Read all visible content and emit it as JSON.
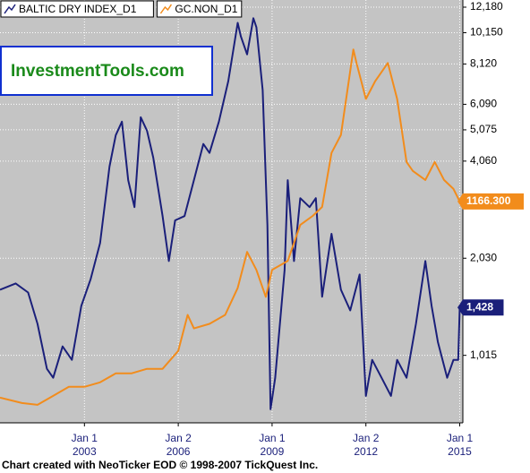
{
  "chart_data": {
    "type": "line",
    "watermark": "InvestmentTools.com",
    "footer": "Chart created with NeoTicker EOD © 1998-2007 TickQuest Inc.",
    "yscale": "log",
    "grid": true,
    "xlim": [
      2000.3,
      2015.1
    ],
    "xticks": [
      {
        "value": 2003,
        "label": "Jan 1 2003"
      },
      {
        "value": 2006,
        "label": "Jan 2 2006"
      },
      {
        "value": 2009,
        "label": "Jan 1 2009"
      },
      {
        "value": 2012,
        "label": "Jan 2 2012"
      },
      {
        "value": 2015,
        "label": "Jan 1 2015"
      }
    ],
    "ylim": [
      627,
      12820
    ],
    "yticks": [
      {
        "value": 1015,
        "label": "1,015"
      },
      {
        "value": 2030,
        "label": "2,030"
      },
      {
        "value": 4060,
        "label": "4,060"
      },
      {
        "value": 5075,
        "label": "5,075"
      },
      {
        "value": 6090,
        "label": "6,090"
      },
      {
        "value": 8120,
        "label": "8,120"
      },
      {
        "value": 10150,
        "label": "10,150"
      },
      {
        "value": 12180,
        "label": "12,180"
      }
    ],
    "y2lim": [
      182,
      2062
    ],
    "series": [
      {
        "name": "BALTIC DRY INDEX_D1",
        "color": "#1a1f7a",
        "x": [
          2000.3,
          2000.8,
          2001.2,
          2001.5,
          2001.8,
          2002.0,
          2002.3,
          2002.6,
          2002.9,
          2003.2,
          2003.5,
          2003.8,
          2004.0,
          2004.2,
          2004.4,
          2004.6,
          2004.8,
          2005.0,
          2005.2,
          2005.5,
          2005.7,
          2005.9,
          2006.2,
          2006.5,
          2006.8,
          2007.0,
          2007.3,
          2007.6,
          2007.9,
          2008.0,
          2008.2,
          2008.4,
          2008.5,
          2008.7,
          2008.85,
          2008.95,
          2009.1,
          2009.4,
          2009.5,
          2009.7,
          2009.9,
          2010.2,
          2010.4,
          2010.6,
          2010.9,
          2011.2,
          2011.5,
          2011.8,
          2012.0,
          2012.2,
          2012.5,
          2012.8,
          2013.0,
          2013.3,
          2013.6,
          2013.9,
          2014.1,
          2014.3,
          2014.6,
          2014.8,
          2014.95,
          2015.0
        ],
        "values": [
          1621,
          1696,
          1590,
          1271,
          922,
          865,
          1082,
          983,
          1444,
          1751,
          2263,
          3904,
          4884,
          5380,
          3544,
          2924,
          5552,
          5045,
          4162,
          2742,
          1990,
          2659,
          2742,
          3544,
          4588,
          4304,
          5380,
          7186,
          10891,
          9896,
          8699,
          11256,
          10556,
          6740,
          2568,
          691,
          865,
          1868,
          3544,
          1990,
          3116,
          2924,
          3116,
          1543,
          2416,
          1621,
          1399,
          1807,
          760,
          983,
          865,
          760,
          983,
          865,
          1271,
          1990,
          1444,
          1117,
          865,
          983,
          983,
          1428
        ],
        "value_labels": [
          null,
          null,
          null,
          null,
          null,
          null,
          null,
          null,
          null,
          null,
          null,
          null,
          null,
          null,
          null,
          null,
          null,
          null,
          null,
          null,
          null,
          null,
          null,
          null,
          null,
          null,
          null,
          null,
          null,
          null,
          null,
          null,
          null,
          null,
          null,
          null,
          null,
          null,
          null,
          null,
          null,
          null,
          null,
          null,
          null,
          null,
          null,
          null,
          null,
          null,
          null,
          null,
          null,
          null,
          null,
          null,
          null,
          null,
          null,
          null,
          null,
          "1,428"
        ]
      },
      {
        "name": "GC.NON_D1",
        "color": "#f28c1c",
        "axis": "y2",
        "x": [
          2000.3,
          2001.0,
          2001.5,
          2002.0,
          2002.5,
          2003.0,
          2003.5,
          2004.0,
          2004.5,
          2005.0,
          2005.5,
          2006.0,
          2006.3,
          2006.5,
          2007.0,
          2007.5,
          2007.9,
          2008.2,
          2008.5,
          2008.8,
          2009.0,
          2009.5,
          2009.9,
          2010.3,
          2010.6,
          2010.9,
          2011.2,
          2011.6,
          2011.7,
          2012.0,
          2012.3,
          2012.7,
          2013.0,
          2013.3,
          2013.5,
          2013.9,
          2014.2,
          2014.5,
          2014.8,
          2015.0
        ],
        "values": [
          294,
          270,
          262,
          302,
          342,
          342,
          362,
          402,
          402,
          422,
          422,
          502,
          662,
          602,
          622,
          662,
          782,
          942,
          862,
          742,
          862,
          902,
          1062,
          1102,
          1142,
          1382,
          1462,
          1842,
          1782,
          1622,
          1702,
          1782,
          1622,
          1342,
          1302,
          1262,
          1342,
          1262,
          1222,
          1166.3
        ],
        "value_labels": [
          null,
          null,
          null,
          null,
          null,
          null,
          null,
          null,
          null,
          null,
          null,
          null,
          null,
          null,
          null,
          null,
          null,
          null,
          null,
          null,
          null,
          null,
          null,
          null,
          null,
          null,
          null,
          null,
          null,
          null,
          null,
          null,
          null,
          null,
          null,
          null,
          null,
          null,
          null,
          "1166.300"
        ]
      }
    ]
  }
}
